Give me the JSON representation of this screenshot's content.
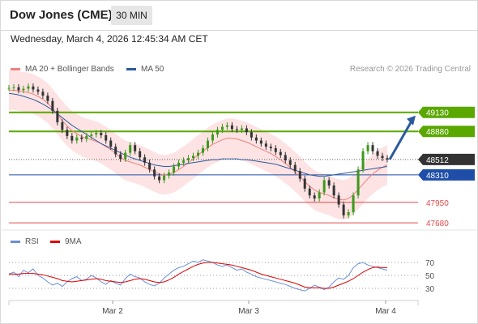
{
  "header": {
    "instrument": "Dow Jones (CME)",
    "timeframe": "30 MIN",
    "datetime": "Wednesday, March 4, 2026 12:45:34 AM CET",
    "research": "Research © 2026 Trading Central"
  },
  "legend_main": [
    {
      "label": "MA 20 + Bollinger Bands",
      "color": "#f08080"
    },
    {
      "label": "MA 50",
      "color": "#2c5aa0"
    }
  ],
  "legend_rsi": [
    {
      "label": "RSI",
      "color": "#6b8fd6"
    },
    {
      "label": "9MA",
      "color": "#e00000"
    }
  ],
  "chart_data": [
    {
      "type": "line",
      "title": "Dow Jones (CME) 30 MIN",
      "ylim": [
        47650,
        49350
      ],
      "x_ticks": [
        "Mar 2",
        "Mar 3",
        "Mar 4"
      ],
      "levels": [
        {
          "value": 49130,
          "label": "49130",
          "kind": "resistance",
          "color": "#5aa700"
        },
        {
          "value": 48880,
          "label": "48880",
          "kind": "resistance",
          "color": "#5aa700"
        },
        {
          "value": 48512,
          "label": "48512",
          "kind": "last",
          "color": "#333333"
        },
        {
          "value": 48310,
          "label": "48310",
          "kind": "pivot",
          "color": "#1f4ea8"
        },
        {
          "value": 47950,
          "label": "47950",
          "kind": "support",
          "color": "#e44b4b"
        },
        {
          "value": 47680,
          "label": "47680",
          "kind": "support",
          "color": "#e44b4b"
        }
      ],
      "price_series": [
        {
          "name": "Price",
          "values": [
            49450,
            49460,
            49420,
            49440,
            49470,
            49430,
            49400,
            49350,
            49280,
            49150,
            49000,
            48900,
            48820,
            48760,
            48800,
            48780,
            48820,
            48840,
            48860,
            48830,
            48760,
            48680,
            48580,
            48520,
            48600,
            48700,
            48620,
            48540,
            48470,
            48380,
            48290,
            48240,
            48300,
            48340,
            48420,
            48470,
            48500,
            48530,
            48560,
            48600,
            48660,
            48760,
            48840,
            48900,
            48940,
            48960,
            48910,
            48900,
            48920,
            48870,
            48800,
            48760,
            48720,
            48680,
            48660,
            48610,
            48570,
            48500,
            48440,
            48360,
            48260,
            48130,
            48040,
            48000,
            48080,
            48240,
            48170,
            48040,
            47920,
            47780,
            47820,
            48040,
            48380,
            48620,
            48700,
            48620,
            48560,
            48530,
            48512
          ]
        },
        {
          "name": "MA 20",
          "values": [
            49420,
            49420,
            49410,
            49400,
            49390,
            49370,
            49340,
            49300,
            49250,
            49180,
            49100,
            49020,
            48950,
            48890,
            48850,
            48810,
            48790,
            48770,
            48750,
            48720,
            48680,
            48640,
            48590,
            48540,
            48500,
            48480,
            48460,
            48440,
            48410,
            48380,
            48350,
            48320,
            48310,
            48320,
            48340,
            48380,
            48420,
            48470,
            48520,
            48570,
            48620,
            48670,
            48710,
            48740,
            48770,
            48790,
            48790,
            48780,
            48760,
            48740,
            48710,
            48680,
            48650,
            48620,
            48590,
            48550,
            48510,
            48460,
            48410,
            48350,
            48290,
            48220,
            48160,
            48110,
            48080,
            48060,
            48040,
            48010,
            47990,
            47980,
            48000,
            48050,
            48120,
            48190,
            48260,
            48320,
            48370,
            48410,
            48440
          ]
        },
        {
          "name": "MA 50",
          "values": [
            49380,
            49370,
            49360,
            49340,
            49320,
            49300,
            49270,
            49240,
            49200,
            49160,
            49110,
            49060,
            49010,
            48960,
            48920,
            48880,
            48840,
            48800,
            48760,
            48720,
            48690,
            48660,
            48630,
            48600,
            48570,
            48540,
            48520,
            48500,
            48480,
            48460,
            48440,
            48430,
            48420,
            48420,
            48430,
            48440,
            48450,
            48460,
            48470,
            48480,
            48490,
            48500,
            48510,
            48510,
            48520,
            48520,
            48520,
            48520,
            48510,
            48510,
            48500,
            48490,
            48480,
            48470,
            48460,
            48450,
            48430,
            48410,
            48390,
            48370,
            48350,
            48330,
            48310,
            48300,
            48290,
            48290,
            48300,
            48310,
            48320,
            48330,
            48340,
            48350,
            48360,
            48370,
            48380,
            48390,
            48400,
            48410,
            48420
          ]
        }
      ],
      "forecast": {
        "from": 48512,
        "to": 49130
      }
    },
    {
      "type": "line",
      "title": "RSI",
      "ylim": [
        15,
        85
      ],
      "y_ticks": [
        70,
        50,
        30
      ],
      "series": [
        {
          "name": "RSI",
          "values": [
            52,
            55,
            48,
            58,
            54,
            60,
            50,
            46,
            40,
            35,
            38,
            33,
            40,
            45,
            48,
            42,
            44,
            50,
            46,
            40,
            36,
            42,
            38,
            35,
            45,
            52,
            48,
            46,
            40,
            36,
            34,
            38,
            46,
            52,
            58,
            62,
            64,
            68,
            72,
            70,
            74,
            72,
            70,
            66,
            64,
            66,
            62,
            58,
            60,
            55,
            52,
            48,
            46,
            44,
            42,
            40,
            38,
            36,
            33,
            30,
            28,
            26,
            30,
            35,
            32,
            28,
            32,
            40,
            46,
            44,
            50,
            62,
            68,
            70,
            66,
            64,
            62,
            60,
            58
          ]
        },
        {
          "name": "9MA",
          "values": [
            52,
            52,
            52,
            53,
            53,
            53,
            52,
            51,
            49,
            47,
            45,
            42,
            41,
            40,
            41,
            42,
            43,
            44,
            45,
            44,
            42,
            41,
            40,
            39,
            40,
            42,
            44,
            45,
            44,
            42,
            40,
            39,
            40,
            43,
            47,
            52,
            56,
            60,
            64,
            67,
            69,
            70,
            70,
            69,
            68,
            67,
            66,
            64,
            62,
            60,
            58,
            55,
            52,
            50,
            48,
            46,
            44,
            42,
            40,
            38,
            35,
            32,
            31,
            31,
            31,
            30,
            30,
            32,
            35,
            38,
            41,
            45,
            50,
            55,
            59,
            62,
            63,
            62,
            62
          ]
        }
      ]
    }
  ]
}
